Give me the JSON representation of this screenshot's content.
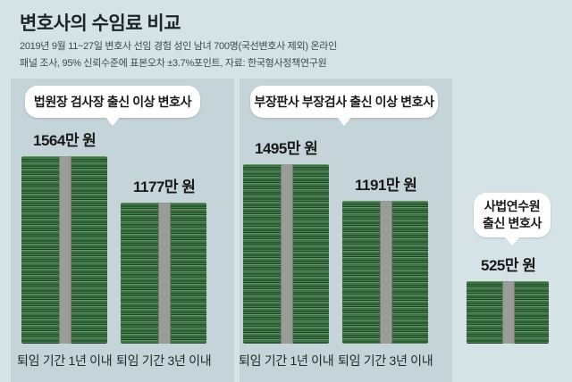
{
  "header": {
    "title": "변호사의 수임료 비교",
    "source_line1": "2019년 9월 11~27일 변호사 선임 경험 성인 남녀 700명(국선변호사 제외) 온라인",
    "source_line2": "패널 조사, 95% 신뢰수준에 표본오차 ±3.7%포인트, 자료: 한국형사정책연구원"
  },
  "groups": [
    {
      "label": "법원장 검사장 출신 이상 변호사"
    },
    {
      "label": "부장판사 부장검사 출신 이상 변호사"
    },
    {
      "label": "사법연수원 출신 변호사",
      "label_lines": [
        "사법연수원",
        "출신 변호사"
      ]
    }
  ],
  "chart_data": {
    "type": "bar",
    "title": "변호사의 수임료 비교",
    "categories": [
      "퇴임 기간 1년 이내",
      "퇴임 기간 3년 이내",
      "퇴임 기간 1년 이내",
      "퇴임 기간 3년 이내",
      "사법연수원 출신 변호사"
    ],
    "values": [
      1564,
      1177,
      1495,
      1191,
      525
    ],
    "value_labels": [
      "1564만 원",
      "1177만 원",
      "1495만 원",
      "1191만 원",
      "525만 원"
    ],
    "bar_groups": [
      "법원장 검사장 출신 이상 변호사",
      "법원장 검사장 출신 이상 변호사",
      "부장판사 부장검사 출신 이상 변호사",
      "부장판사 부장검사 출신 이상 변호사",
      "사법연수원 출신 변호사"
    ],
    "unit": "만 원",
    "ylim": [
      0,
      1564
    ],
    "grid": false,
    "bar_color": "#3d7345",
    "band_color": "#9a9c98",
    "background_color": "#d6e3e6",
    "panel_color": "#c4d4d9"
  }
}
